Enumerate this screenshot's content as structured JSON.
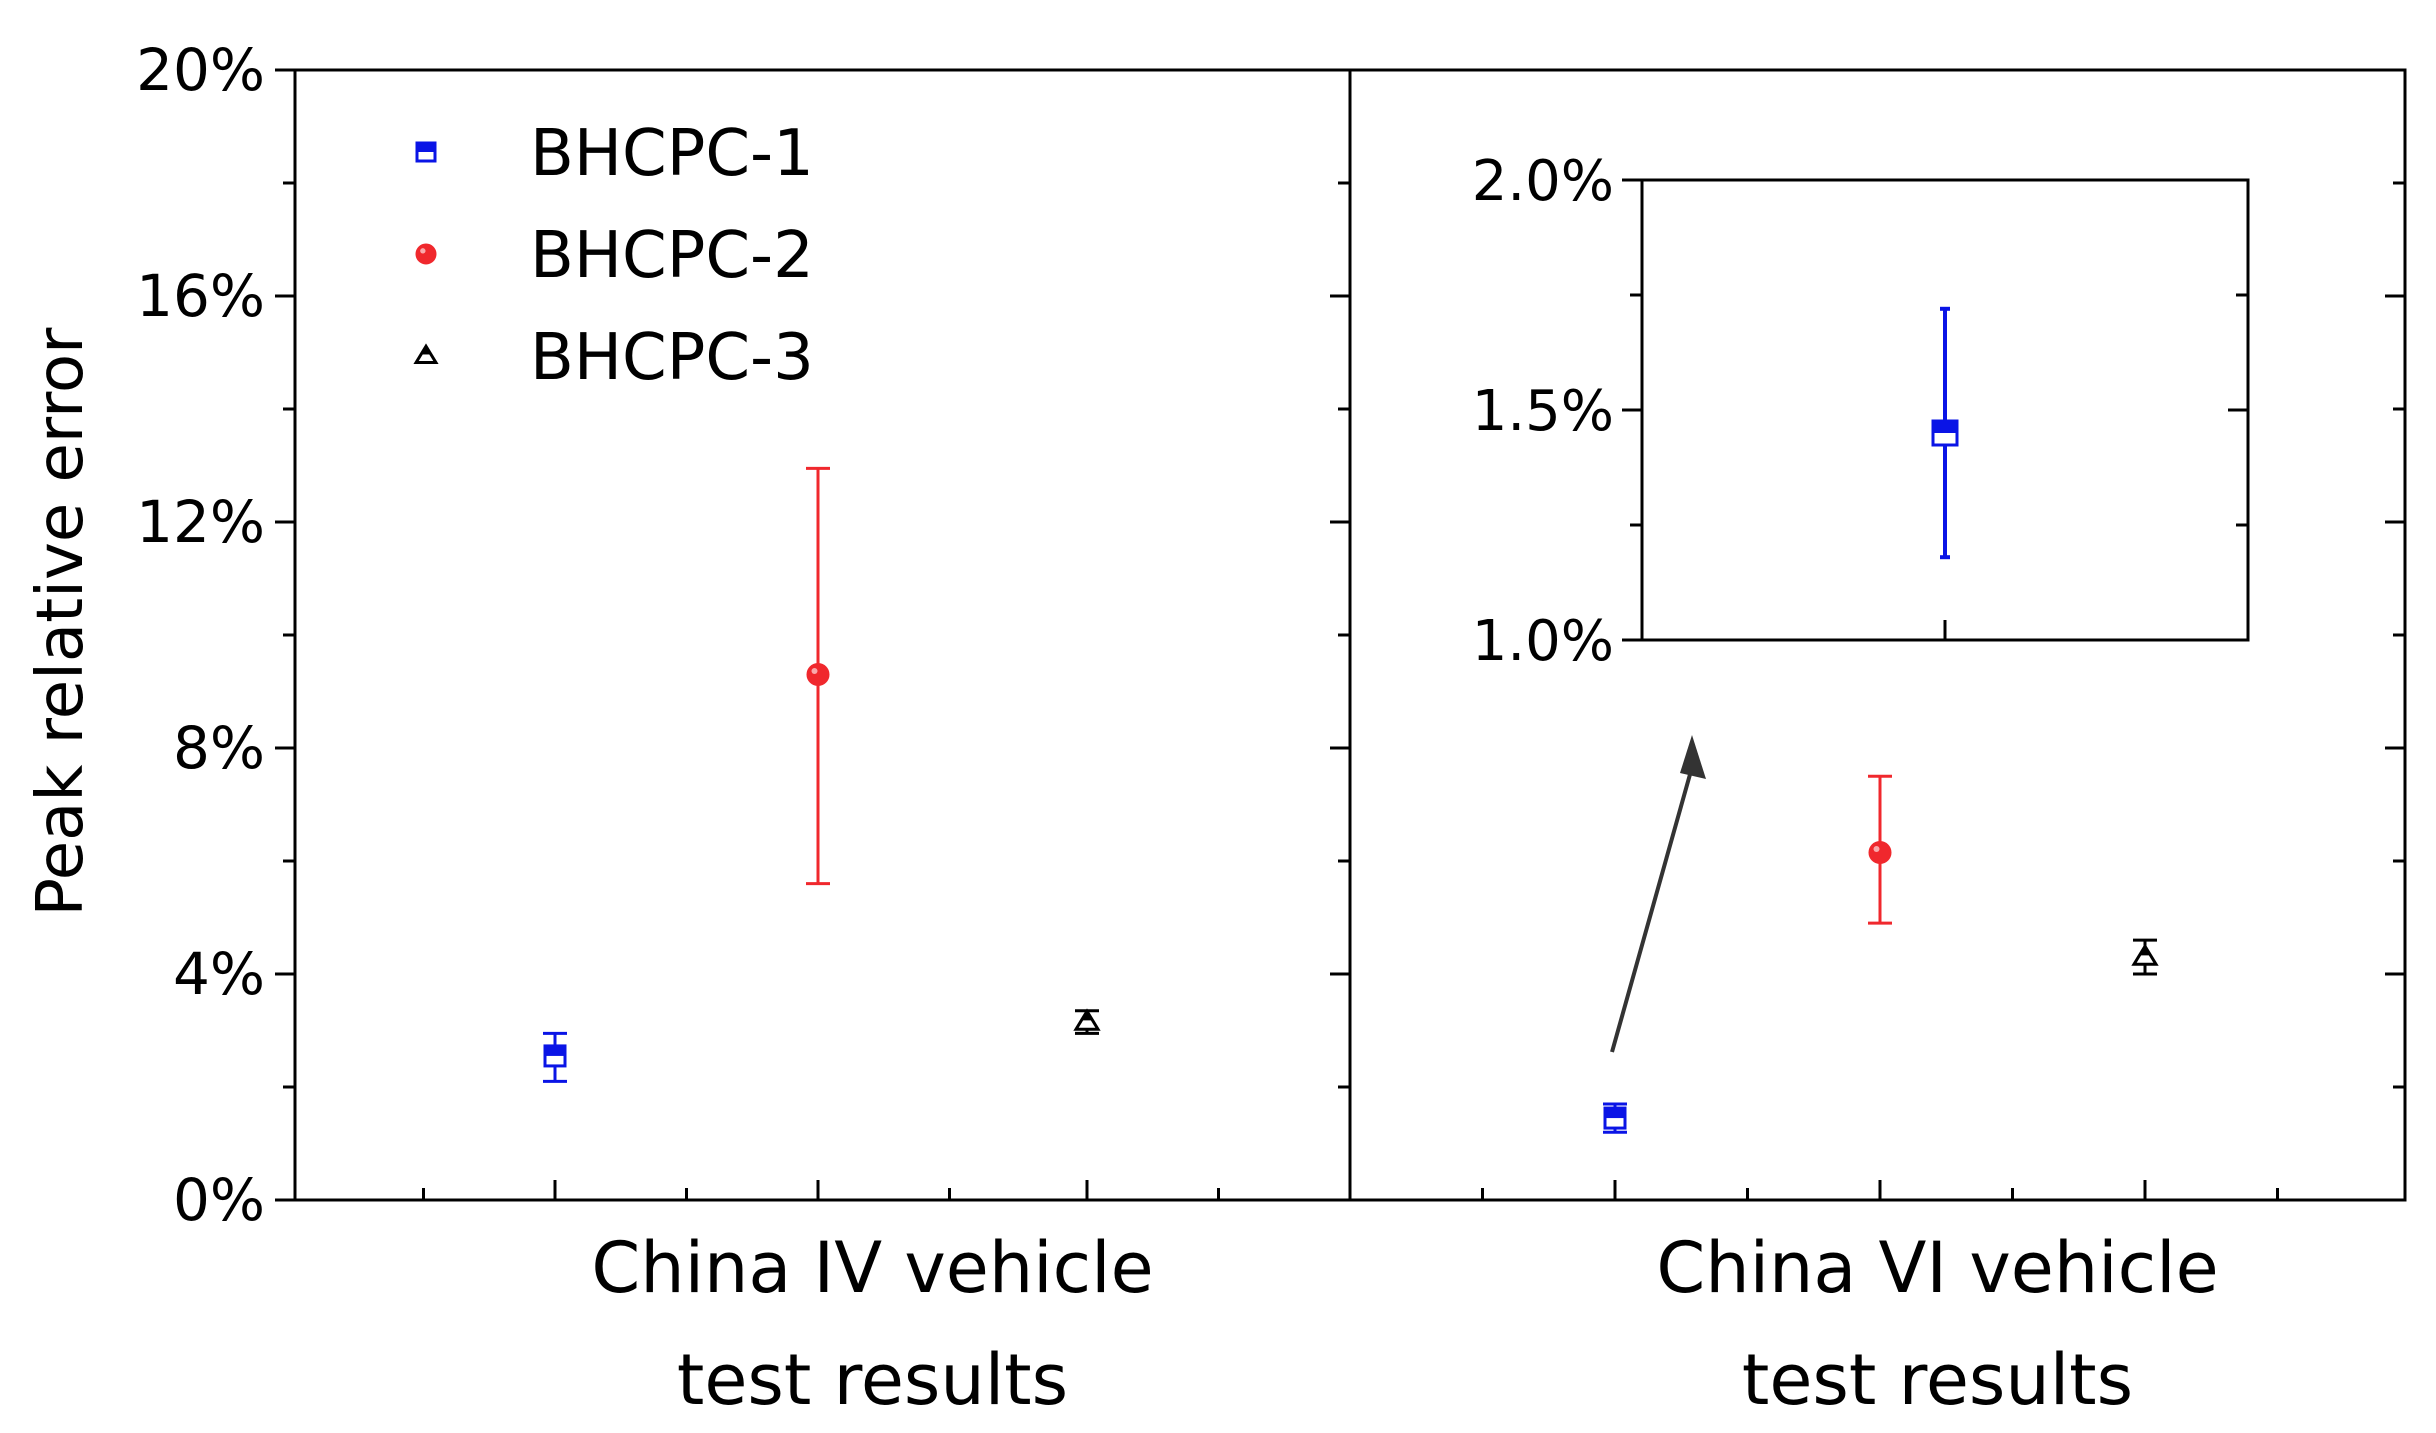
{
  "chart_data": {
    "type": "scatter",
    "ylabel": "Peak relative error",
    "ylim": [
      0,
      20
    ],
    "y_unit": "%",
    "yticks": [
      "0%",
      "4%",
      "8%",
      "12%",
      "16%",
      "20%"
    ],
    "legend_position": "top-left",
    "groups": [
      "China IV vehicle test results",
      "China VI vehicle test results"
    ],
    "group_label_lines": [
      [
        "China IV vehicle",
        "test results"
      ],
      [
        "China VI vehicle",
        "test results"
      ]
    ],
    "series": [
      {
        "name": "BHCPC-1",
        "marker": "square-half",
        "color": "#0a14e6",
        "values": [
          2.55,
          1.45
        ],
        "error_low": [
          2.1,
          1.2
        ],
        "error_high": [
          2.95,
          1.7
        ]
      },
      {
        "name": "BHCPC-2",
        "marker": "circle",
        "color": "#f0282d",
        "values": [
          9.3,
          6.15
        ],
        "error_low": [
          5.6,
          4.9
        ],
        "error_high": [
          12.95,
          7.5
        ]
      },
      {
        "name": "BHCPC-3",
        "marker": "triangle-half",
        "color": "#000000",
        "values": [
          3.15,
          4.3
        ],
        "error_low": [
          2.95,
          4.0
        ],
        "error_high": [
          3.35,
          4.6
        ]
      }
    ],
    "inset": {
      "group": "China VI vehicle test results",
      "series": "BHCPC-1",
      "ylim": [
        1.0,
        2.0
      ],
      "yticks": [
        "1.0%",
        "1.5%",
        "2.0%"
      ],
      "value": 1.45,
      "error_low": 1.18,
      "error_high": 1.72
    }
  }
}
